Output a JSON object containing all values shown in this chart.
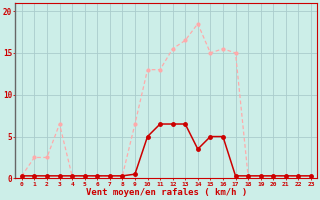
{
  "x": [
    0,
    1,
    2,
    3,
    4,
    5,
    6,
    7,
    8,
    9,
    10,
    11,
    12,
    13,
    14,
    15,
    16,
    17,
    18,
    19,
    20,
    21,
    22,
    23
  ],
  "y_rafales": [
    0.3,
    2.5,
    2.5,
    6.5,
    0.3,
    0.3,
    0.3,
    0.3,
    0.3,
    6.5,
    13,
    13,
    15.5,
    16.5,
    18.5,
    15,
    15.5,
    15,
    0.3,
    0.3,
    0.3,
    0.3,
    0.3,
    0.3
  ],
  "y_moyen": [
    0.3,
    0.3,
    0.3,
    0.3,
    0.3,
    0.3,
    0.3,
    0.3,
    0.3,
    0.5,
    5,
    6.5,
    6.5,
    6.5,
    3.5,
    5,
    5,
    0.3,
    0.3,
    0.3,
    0.3,
    0.3,
    0.3,
    0.3
  ],
  "color_rafales": "#ffaaaa",
  "color_moyen": "#cc0000",
  "bg_color": "#cceee8",
  "grid_color": "#aacccc",
  "xlabel": "Vent moyen/en rafales ( km/h )",
  "xlabel_color": "#cc0000",
  "tick_color": "#cc0000",
  "yticks": [
    0,
    5,
    10,
    15,
    20
  ],
  "xticks": [
    0,
    1,
    2,
    3,
    4,
    5,
    6,
    7,
    8,
    9,
    10,
    11,
    12,
    13,
    14,
    15,
    16,
    17,
    18,
    19,
    20,
    21,
    22,
    23
  ],
  "ylim": [
    0,
    21
  ],
  "xlim": [
    -0.5,
    23.5
  ]
}
